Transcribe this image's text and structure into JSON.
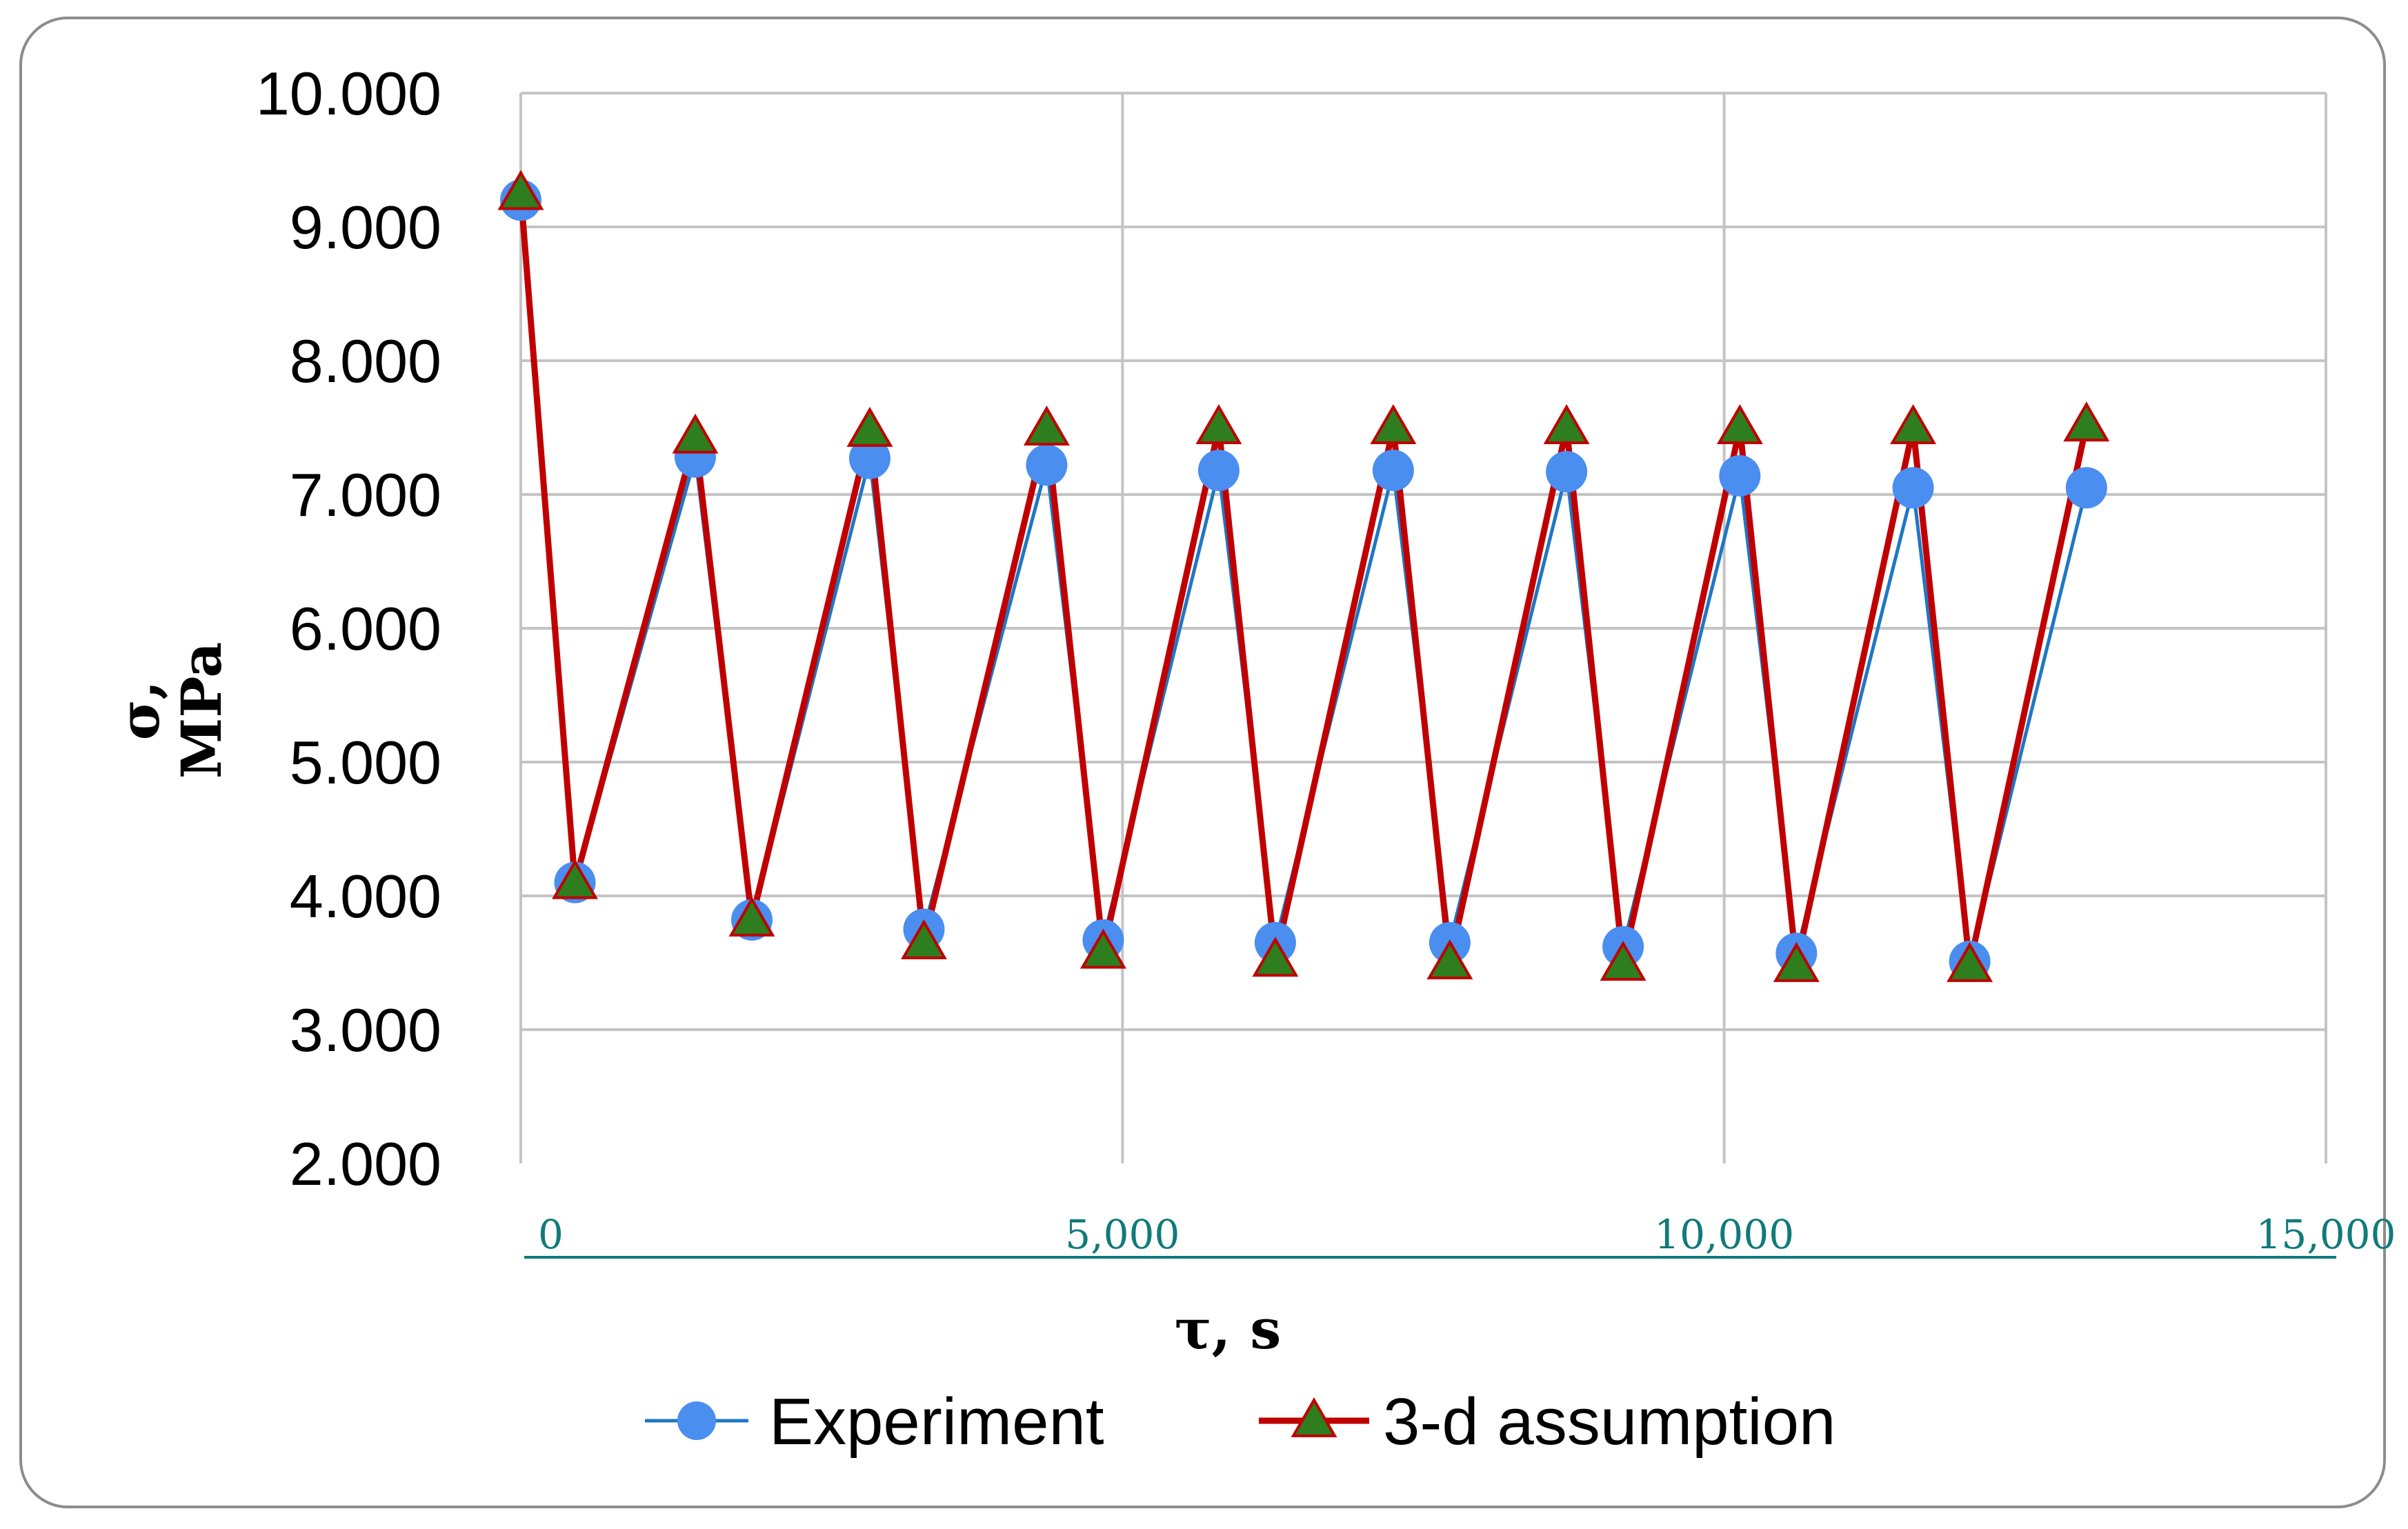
{
  "chart_data": {
    "type": "line",
    "title": "",
    "xlabel": "τ, s",
    "ylabel_line1": "σ,",
    "ylabel_line2": "MPa",
    "xlim": [
      0,
      15000
    ],
    "ylim": [
      2000,
      10000
    ],
    "x_ticks": [
      "0",
      "5,000",
      "10,000",
      "15,000"
    ],
    "x_tick_values": [
      0,
      5000,
      10000,
      15000
    ],
    "y_ticks": [
      "2.000",
      "3.000",
      "4.000",
      "5.000",
      "6.000",
      "7.000",
      "8.000",
      "9.000",
      "10.000"
    ],
    "y_tick_values": [
      2000,
      3000,
      4000,
      5000,
      6000,
      7000,
      8000,
      9000,
      10000
    ],
    "grid": true,
    "legend_position": "bottom",
    "series": [
      {
        "name": "Experiment",
        "color": "#1f77c4",
        "marker": "circle",
        "marker_color": "#4a8ef0",
        "x": [
          0,
          450,
          1450,
          1920,
          2900,
          3350,
          4370,
          4840,
          5800,
          6270,
          7250,
          7720,
          8690,
          9160,
          10130,
          10600,
          11570,
          12040,
          13010
        ],
        "y": [
          9200,
          4100,
          7280,
          3820,
          7270,
          3750,
          7220,
          3670,
          7180,
          3650,
          7180,
          3650,
          7170,
          3620,
          7140,
          3570,
          7050,
          3510,
          7050
        ]
      },
      {
        "name": "3-d assumption",
        "color": "#c00000",
        "marker": "triangle",
        "marker_color": "#2e7d1e",
        "x": [
          0,
          450,
          1450,
          1920,
          2900,
          3350,
          4370,
          4840,
          5800,
          6270,
          7250,
          7720,
          8690,
          9160,
          10130,
          10600,
          11570,
          12040,
          13010
        ],
        "y": [
          9250,
          4100,
          7430,
          3820,
          7480,
          3650,
          7490,
          3580,
          7500,
          3520,
          7500,
          3500,
          7500,
          3490,
          7500,
          3480,
          7500,
          3480,
          7520
        ]
      }
    ]
  }
}
